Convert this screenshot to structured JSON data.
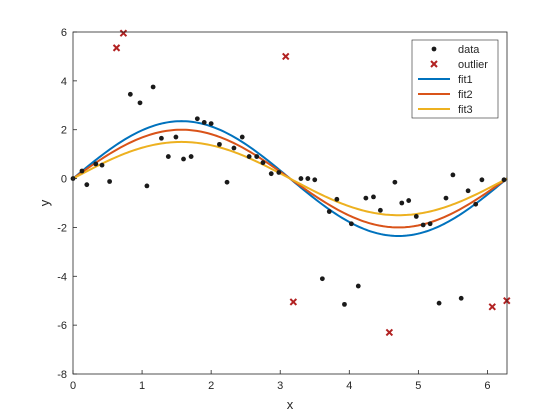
{
  "chart_data": {
    "type": "scatter",
    "xlabel": "x",
    "ylabel": "y",
    "xlim": [
      0,
      6.2832
    ],
    "ylim": [
      -8,
      6
    ],
    "xticks": [
      0,
      1,
      2,
      3,
      4,
      5,
      6
    ],
    "yticks": [
      -8,
      -6,
      -4,
      -2,
      0,
      2,
      4,
      6
    ],
    "grid": false,
    "legend_position": "top-right",
    "colors": {
      "data": "#1a1a1a",
      "outlier": "#b22222",
      "fit1": "#0072bd",
      "fit2": "#d95319",
      "fit3": "#edb120"
    },
    "series": [
      {
        "name": "data",
        "kind": "marker-dot",
        "points": [
          [
            0.0,
            0.0
          ],
          [
            0.13,
            0.31
          ],
          [
            0.2,
            -0.25
          ],
          [
            0.33,
            0.6
          ],
          [
            0.42,
            0.55
          ],
          [
            0.53,
            -0.12
          ],
          [
            0.83,
            3.45
          ],
          [
            0.97,
            3.1
          ],
          [
            1.07,
            -0.3
          ],
          [
            1.16,
            3.75
          ],
          [
            1.28,
            1.65
          ],
          [
            1.38,
            0.9
          ],
          [
            1.49,
            1.7
          ],
          [
            1.6,
            0.8
          ],
          [
            1.71,
            0.9
          ],
          [
            1.8,
            2.45
          ],
          [
            1.9,
            2.3
          ],
          [
            2.0,
            2.25
          ],
          [
            2.12,
            1.4
          ],
          [
            2.23,
            -0.15
          ],
          [
            2.33,
            1.25
          ],
          [
            2.45,
            1.7
          ],
          [
            2.55,
            0.9
          ],
          [
            2.66,
            0.9
          ],
          [
            2.75,
            0.65
          ],
          [
            2.87,
            0.2
          ],
          [
            2.98,
            0.25
          ],
          [
            3.3,
            0.0
          ],
          [
            3.4,
            0.0
          ],
          [
            3.5,
            -0.05
          ],
          [
            3.61,
            -4.1
          ],
          [
            3.71,
            -1.35
          ],
          [
            3.82,
            -0.85
          ],
          [
            3.93,
            -5.15
          ],
          [
            4.03,
            -1.85
          ],
          [
            4.13,
            -4.4
          ],
          [
            4.24,
            -0.8
          ],
          [
            4.35,
            -0.75
          ],
          [
            4.45,
            -1.3
          ],
          [
            4.66,
            -0.15
          ],
          [
            4.76,
            -1.0
          ],
          [
            4.86,
            -0.9
          ],
          [
            4.97,
            -1.55
          ],
          [
            5.07,
            -1.9
          ],
          [
            5.17,
            -1.85
          ],
          [
            5.3,
            -5.1
          ],
          [
            5.4,
            -0.8
          ],
          [
            5.5,
            0.15
          ],
          [
            5.62,
            -4.9
          ],
          [
            5.72,
            -0.5
          ],
          [
            5.83,
            -1.05
          ],
          [
            5.92,
            -0.05
          ],
          [
            6.24,
            -0.05
          ]
        ]
      },
      {
        "name": "outlier",
        "kind": "marker-x",
        "points": [
          [
            0.63,
            5.35
          ],
          [
            0.73,
            5.95
          ],
          [
            3.08,
            5.0
          ],
          [
            3.19,
            -5.05
          ],
          [
            4.58,
            -6.3
          ],
          [
            6.07,
            -5.25
          ],
          [
            6.28,
            -5.0
          ]
        ]
      },
      {
        "name": "fit1",
        "kind": "line",
        "amplitude": 2.35
      },
      {
        "name": "fit2",
        "kind": "line",
        "amplitude": 2.0
      },
      {
        "name": "fit3",
        "kind": "line",
        "amplitude": 1.5
      }
    ]
  }
}
